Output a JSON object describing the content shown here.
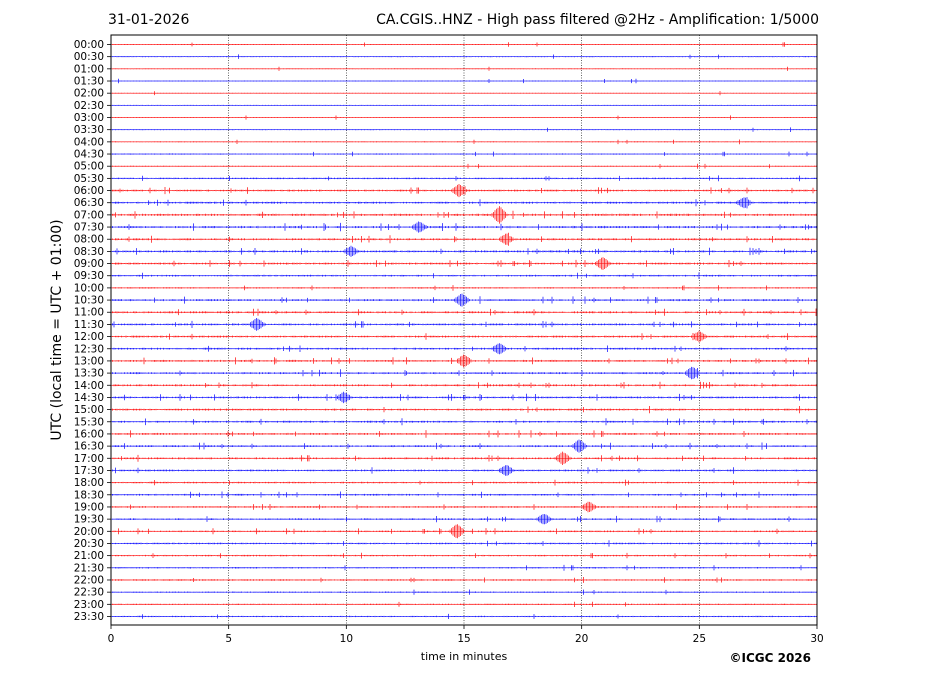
{
  "header": {
    "date": "31-01-2026",
    "title": "CA.CGIS..HNZ - High pass filtered @2Hz - Amplification: 1/5000"
  },
  "footer": {
    "copyright": "©ICGC 2026"
  },
  "chart_data": {
    "type": "line",
    "title": "CA.CGIS..HNZ - High pass filtered @2Hz - Amplification: 1/5000",
    "xlabel": "time in minutes",
    "ylabel": "UTC (local time = UTC + 01:00)",
    "xlim": [
      0,
      30
    ],
    "xticks": [
      0,
      5,
      10,
      15,
      20,
      25,
      30
    ],
    "grid": "vertical dotted lines at 5, 10, 15, 20, 25",
    "series_colors": [
      "#ff0000",
      "#0000ff"
    ],
    "rows": [
      "00:00",
      "00:30",
      "01:00",
      "01:30",
      "02:00",
      "02:30",
      "03:00",
      "03:30",
      "04:00",
      "04:30",
      "05:00",
      "05:30",
      "06:00",
      "06:30",
      "07:00",
      "07:30",
      "08:00",
      "08:30",
      "09:00",
      "09:30",
      "10:00",
      "10:30",
      "11:00",
      "11:30",
      "12:00",
      "12:30",
      "13:00",
      "13:30",
      "14:00",
      "14:30",
      "15:00",
      "15:30",
      "16:00",
      "16:30",
      "17:00",
      "17:30",
      "18:00",
      "18:30",
      "19:00",
      "19:30",
      "20:00",
      "20:30",
      "21:00",
      "21:30",
      "22:00",
      "22:30",
      "23:00",
      "23:30"
    ],
    "activity": [
      0.15,
      0.15,
      0.12,
      0.12,
      0.1,
      0.12,
      0.1,
      0.12,
      0.15,
      0.2,
      0.22,
      0.35,
      0.5,
      0.6,
      0.65,
      0.65,
      0.6,
      0.6,
      0.55,
      0.45,
      0.3,
      0.55,
      0.55,
      0.55,
      0.55,
      0.55,
      0.55,
      0.55,
      0.55,
      0.55,
      0.55,
      0.55,
      0.55,
      0.5,
      0.5,
      0.5,
      0.4,
      0.45,
      0.45,
      0.45,
      0.4,
      0.4,
      0.35,
      0.35,
      0.35,
      0.3,
      0.3,
      0.25
    ],
    "events": [
      {
        "row": "06:00",
        "minute": 14.8,
        "amp": 0.6
      },
      {
        "row": "06:30",
        "minute": 26.9,
        "amp": 0.5
      },
      {
        "row": "07:00",
        "minute": 16.5,
        "amp": 0.8
      },
      {
        "row": "07:30",
        "minute": 13.1,
        "amp": 0.5
      },
      {
        "row": "08:00",
        "minute": 16.8,
        "amp": 0.5
      },
      {
        "row": "08:30",
        "minute": 10.2,
        "amp": 0.5
      },
      {
        "row": "09:00",
        "minute": 20.9,
        "amp": 0.6
      },
      {
        "row": "10:30",
        "minute": 14.9,
        "amp": 0.6
      },
      {
        "row": "11:30",
        "minute": 6.2,
        "amp": 0.6
      },
      {
        "row": "12:00",
        "minute": 25.0,
        "amp": 0.5
      },
      {
        "row": "12:30",
        "minute": 16.5,
        "amp": 0.5
      },
      {
        "row": "13:00",
        "minute": 15.0,
        "amp": 0.6
      },
      {
        "row": "13:30",
        "minute": 24.7,
        "amp": 0.6
      },
      {
        "row": "14:30",
        "minute": 9.9,
        "amp": 0.5
      },
      {
        "row": "16:30",
        "minute": 19.9,
        "amp": 0.6
      },
      {
        "row": "17:00",
        "minute": 19.2,
        "amp": 0.6
      },
      {
        "row": "17:30",
        "minute": 16.8,
        "amp": 0.5
      },
      {
        "row": "19:00",
        "minute": 20.3,
        "amp": 0.5
      },
      {
        "row": "19:30",
        "minute": 18.4,
        "amp": 0.5
      },
      {
        "row": "20:00",
        "minute": 14.7,
        "amp": 0.7
      }
    ]
  }
}
